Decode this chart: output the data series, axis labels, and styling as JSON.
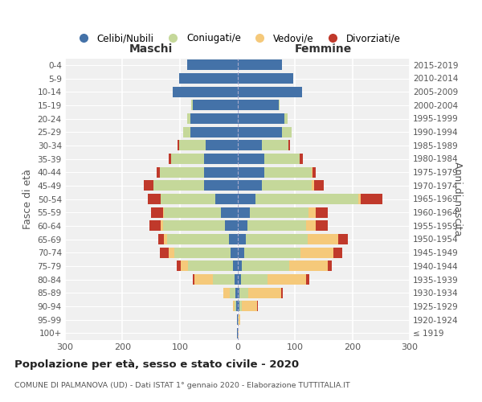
{
  "age_groups": [
    "100+",
    "95-99",
    "90-94",
    "85-89",
    "80-84",
    "75-79",
    "70-74",
    "65-69",
    "60-64",
    "55-59",
    "50-54",
    "45-49",
    "40-44",
    "35-39",
    "30-34",
    "25-29",
    "20-24",
    "15-19",
    "10-14",
    "5-9",
    "0-4"
  ],
  "birth_years": [
    "≤ 1919",
    "1920-1924",
    "1925-1929",
    "1930-1934",
    "1935-1939",
    "1940-1944",
    "1945-1949",
    "1950-1954",
    "1955-1959",
    "1960-1964",
    "1965-1969",
    "1970-1974",
    "1975-1979",
    "1980-1984",
    "1985-1989",
    "1990-1994",
    "1995-1999",
    "2000-2004",
    "2005-2009",
    "2010-2014",
    "2015-2019"
  ],
  "males": {
    "celibi": [
      1,
      1,
      2,
      3,
      5,
      8,
      12,
      15,
      22,
      28,
      38,
      58,
      58,
      58,
      55,
      82,
      82,
      78,
      112,
      102,
      87
    ],
    "coniugati": [
      0,
      0,
      3,
      10,
      38,
      78,
      98,
      108,
      108,
      100,
      95,
      88,
      77,
      57,
      47,
      12,
      5,
      2,
      0,
      0,
      0
    ],
    "vedovi": [
      0,
      0,
      2,
      12,
      32,
      12,
      10,
      5,
      3,
      2,
      1,
      0,
      0,
      0,
      0,
      0,
      0,
      0,
      0,
      0,
      0
    ],
    "divorziati": [
      0,
      0,
      0,
      0,
      2,
      8,
      15,
      10,
      20,
      20,
      22,
      17,
      6,
      5,
      2,
      1,
      0,
      0,
      0,
      0,
      0
    ]
  },
  "females": {
    "nubili": [
      1,
      1,
      3,
      4,
      6,
      8,
      12,
      15,
      18,
      22,
      32,
      42,
      47,
      47,
      42,
      77,
      82,
      72,
      112,
      97,
      77
    ],
    "coniugate": [
      0,
      1,
      4,
      15,
      47,
      82,
      98,
      108,
      102,
      102,
      178,
      88,
      82,
      62,
      47,
      17,
      5,
      2,
      0,
      0,
      0
    ],
    "vedove": [
      1,
      3,
      27,
      57,
      67,
      67,
      57,
      52,
      17,
      12,
      5,
      3,
      2,
      0,
      0,
      0,
      0,
      0,
      0,
      0,
      0
    ],
    "divorziate": [
      0,
      0,
      1,
      3,
      5,
      8,
      15,
      18,
      20,
      22,
      37,
      17,
      6,
      5,
      2,
      0,
      0,
      0,
      0,
      0,
      0
    ]
  },
  "colors": {
    "celibi": "#4472a8",
    "coniugati": "#c5d89a",
    "vedovi": "#f5c97a",
    "divorziati": "#c0392b"
  },
  "xlim": 300,
  "title": "Popolazione per età, sesso e stato civile - 2020",
  "subtitle": "COMUNE DI PALMANOVA (UD) - Dati ISTAT 1° gennaio 2020 - Elaborazione TUTTITALIA.IT",
  "ylabel_left": "Fasce di età",
  "ylabel_right": "Anni di nascita",
  "label_maschi": "Maschi",
  "label_femmine": "Femmine",
  "bg_color": "#f0f0f0",
  "legend": [
    "Celibi/Nubili",
    "Coniugati/e",
    "Vedovi/e",
    "Divorziati/e"
  ]
}
